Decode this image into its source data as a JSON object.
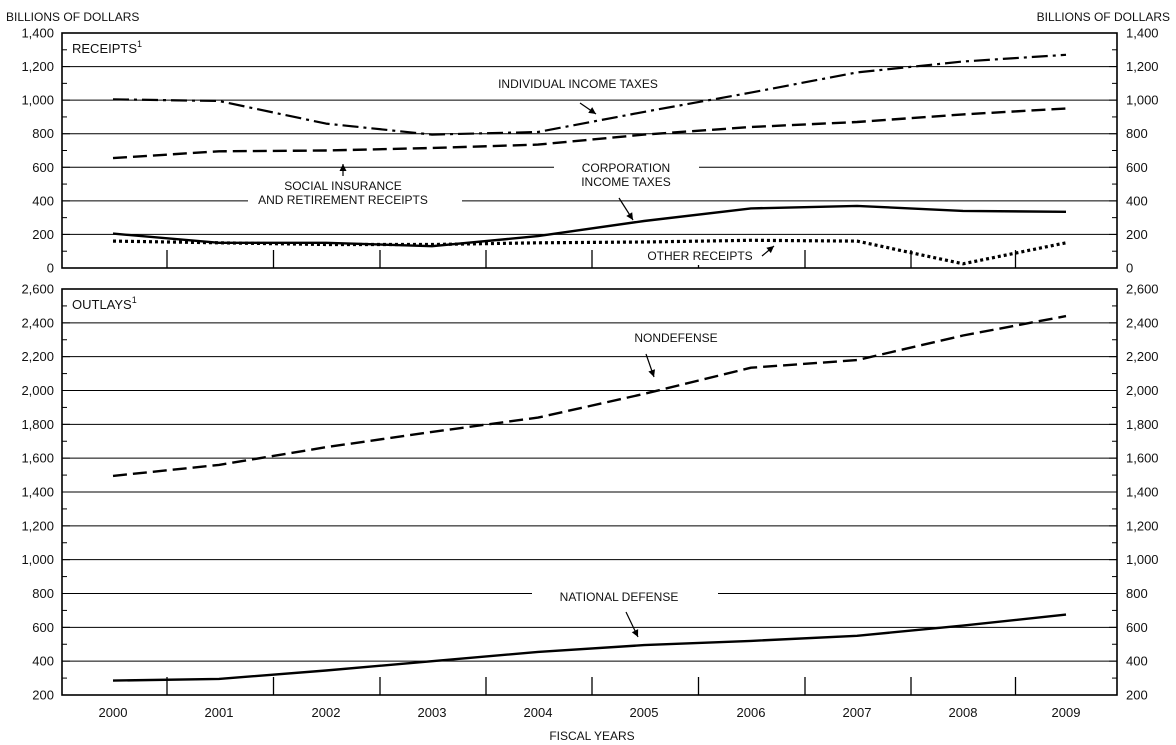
{
  "units_left": "BILLIONS OF DOLLARS",
  "units_right": "BILLIONS OF DOLLARS",
  "x_title": "FISCAL YEARS",
  "chart_data": [
    {
      "type": "line",
      "title": "RECEIPTS",
      "title_footnote": "1",
      "x": [
        2000,
        2001,
        2002,
        2003,
        2004,
        2005,
        2006,
        2007,
        2008,
        2009
      ],
      "ylim": [
        0,
        1400
      ],
      "ytick_labels": [
        "0",
        "200",
        "400",
        "600",
        "800",
        "1,000",
        "1,200",
        "1,400"
      ],
      "grid": true,
      "series": [
        {
          "name": "INDIVIDUAL INCOME TAXES",
          "style": "dash-dot",
          "values": [
            1005,
            995,
            860,
            795,
            810,
            930,
            1045,
            1165,
            1230,
            1270
          ]
        },
        {
          "name": "SOCIAL INSURANCE AND RETIREMENT RECEIPTS",
          "style": "dashed",
          "values": [
            655,
            695,
            700,
            715,
            735,
            795,
            840,
            870,
            915,
            950
          ]
        },
        {
          "name": "CORPORATION INCOME TAXES",
          "style": "solid",
          "values": [
            205,
            150,
            150,
            130,
            190,
            280,
            355,
            370,
            340,
            335
          ]
        },
        {
          "name": "OTHER RECEIPTS",
          "style": "dotted",
          "values": [
            160,
            150,
            140,
            140,
            150,
            155,
            165,
            160,
            25,
            150
          ]
        }
      ],
      "annotations": [
        {
          "lines": [
            "INDIVIDUAL INCOME TAXES"
          ]
        },
        {
          "lines": [
            "SOCIAL INSURANCE",
            "AND RETIREMENT RECEIPTS"
          ]
        },
        {
          "lines": [
            "CORPORATION",
            "INCOME TAXES"
          ]
        },
        {
          "lines": [
            "OTHER RECEIPTS"
          ]
        }
      ]
    },
    {
      "type": "line",
      "title": "OUTLAYS",
      "title_footnote": "1",
      "x": [
        2000,
        2001,
        2002,
        2003,
        2004,
        2005,
        2006,
        2007,
        2008,
        2009
      ],
      "ylim": [
        200,
        2600
      ],
      "ytick_labels": [
        "200",
        "400",
        "600",
        "800",
        "1,000",
        "1,200",
        "1,400",
        "1,600",
        "1,800",
        "2,000",
        "2,200",
        "2,400",
        "2,600"
      ],
      "grid": true,
      "series": [
        {
          "name": "NONDEFENSE",
          "style": "dashed",
          "values": [
            1495,
            1560,
            1665,
            1755,
            1840,
            1980,
            2135,
            2180,
            2325,
            2440
          ]
        },
        {
          "name": "NATIONAL DEFENSE",
          "style": "solid",
          "values": [
            285,
            295,
            345,
            400,
            455,
            495,
            520,
            550,
            610,
            675
          ]
        }
      ],
      "annotations": [
        {
          "lines": [
            "NONDEFENSE"
          ]
        },
        {
          "lines": [
            "NATIONAL DEFENSE"
          ]
        }
      ]
    }
  ]
}
